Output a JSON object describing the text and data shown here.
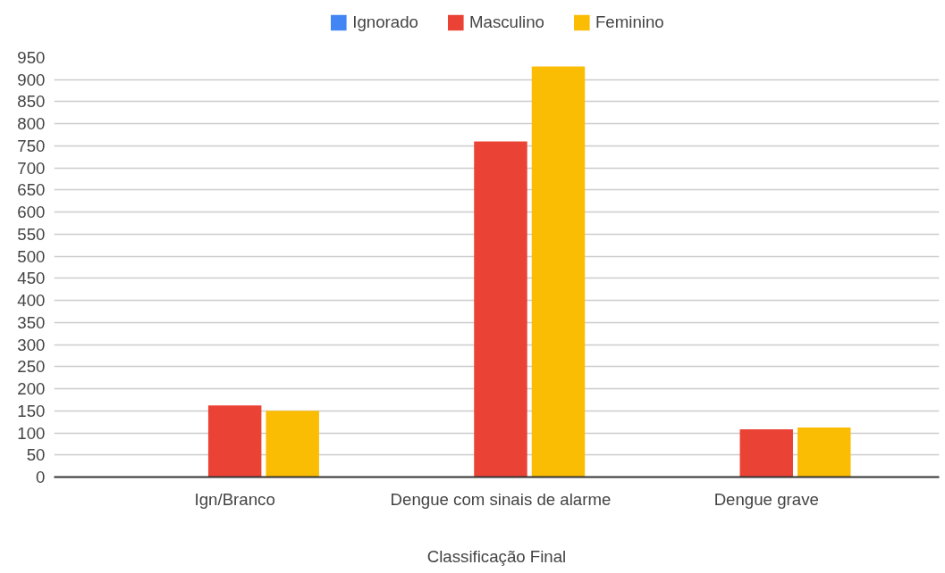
{
  "chart_data": {
    "type": "bar",
    "xlabel": "Classificação Final",
    "categories": [
      "Ign/Branco",
      "Dengue com sinais de alarme",
      "Dengue grave"
    ],
    "series": [
      {
        "name": "Ignorado",
        "color": "#4285f4",
        "values": [
          0,
          0,
          0
        ]
      },
      {
        "name": "Masculino",
        "color": "#ea4335",
        "values": [
          162,
          760,
          108
        ]
      },
      {
        "name": "Feminino",
        "color": "#fbbc04",
        "values": [
          150,
          930,
          112
        ]
      }
    ],
    "ylim": [
      0,
      950
    ],
    "yticks": [
      0,
      50,
      100,
      150,
      200,
      250,
      300,
      350,
      400,
      450,
      500,
      550,
      600,
      650,
      700,
      750,
      800,
      850,
      900,
      950
    ],
    "grid": "y",
    "legend": "top"
  }
}
